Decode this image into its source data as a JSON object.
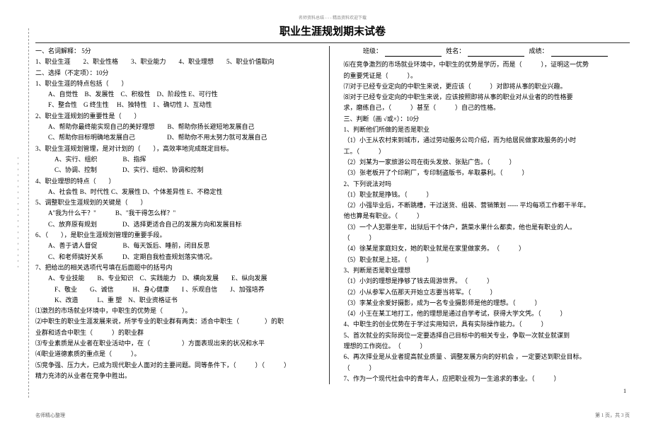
{
  "header_small": "名师资料总结 - - - 精品资料欢迎下载",
  "title": "职业生涯规划期末试卷",
  "info": {
    "class": "班级：",
    "name": "姓名：",
    "score": "成绩："
  },
  "left": [
    "一、名词解释：  5分",
    "1、职业生涯　　2、职业性格　　3、职业能力　　4、职业理想　　5、职业价值取向",
    "二、选择（不定项）：10分",
    "1、职业生涯的特点包括（　　）",
    "　　A、自觉性　B、发展性　C、积极性　D、阶段性  E、可行性",
    "　　F、整合性　G 终生性　  H、独特性　I 、确切性  J、互动性",
    "2、职业生涯规划的重要性是（　　）",
    "　　A、帮助你最终能实现自己的美好理想　　B、帮助你扬长避短地发展自己",
    "　　C、帮助你目标明确地发展自己　　　　　D、帮助你不用太努力就可发展自己",
    "3、职业生涯规划管理，是对计划的（　　），高效率地完成既定目标。",
    "　　　A、实行、组织　　　　B、指挥",
    "　　　C、协调、控制　　　　D、实行、组织、协调和控制",
    "4、职业理想的特点（　　）",
    "　　A、社会性  B、时代性  C、发展性  D、个体差异性  E、不稳定性",
    "5、调整职业生涯规划的关键是（　　）",
    "　　A\"我为什么干？\"　　　B、\"我干得怎么样？\"",
    "　　C、放弃原有规划　　　　D、选择更适合自己的发展方向和发展目标",
    "6、（　　），是职业生涯规划管理的重要手段。",
    "　　A、善于请人督促　　　　B、每天饭后、睡前，闭目反思",
    "　　C、和老师搞好关系　　　D、定期自我检查规划落实情况。",
    "7、把给出的相关选项代号填在后面题中的括号内",
    "　　A、专业技能　　B、专业知识　C、实践能力　D、横向发展　　E、纵向发展",
    "　　　F、敬业　　G、诚信　　　H、身心健康　　I 、乐观自信　　J、加强培养",
    "　　　K、改造　　　L、重 塑　N、职业资格证书",
    "⑴激烈的市场就业环境中，中职生的优势是（　　　）。",
    "⑵中职生的职业生涯发展来说，所学专业的职业群有两类：适合中职生（　　　　）的职",
    "业群和适合中职生（　　　）的职业群",
    "⑶专业素质是从业者在职业活动中，在（　　　　　）方面表现出来的状况和水平",
    "⑷职业道德素质的重点是（　　　）。",
    "⑸竞争强、压力大，已成为现代职业人面对的主要问题。同等条件下，（　　　）（　　　）",
    "精力充沛的从业者在竞争中胜出。"
  ],
  "right": [
    "⑹在竞争激烈的市场就业环境中，中职生的优势是学历，而是（　　　），证明这一优势",
    "的重要凭证是（　　　）。",
    "⑺对于已经专业定向的中职生来说，更应该（　　　）对即将从事的职业兴趣。",
    "⑻对于已经专业定向的中职生来说，应该按照即将从事的职业对从业者的的性格要",
    "求，磨练自己，（　　　）甚至（　　　）自己的性格。",
    "三、判断（画 √或×）：10分",
    "1、判断他们所做的是否是职业",
    "（1）小王从农村来到城市，通过劳动服务公司介绍，而为给居民做家政服务的小时",
    "工。（　　　）",
    "（2）刘某为一家旅游公司在街头发放、张贴广告。（　　　）",
    "（3）张老板开了个印刷厂，专印制盗版书，牟取暴利。（　　　）",
    "2、下列说法对吗",
    "（1）职业就是挣钱。（　　　）",
    "（2）小强毕业后，不断跳槽，干过送货、组装、营销策划 ----- 平均每项工作都干半年。",
    "他也算是有职业。（　　　）",
    "（3）一个人犯罪坐牢，出狱后干个体户，蔬菜水果什么都卖，他也是有职业的人。",
    "（　　　）",
    "（4）徐某是家庭妇女，她的职业就是在家里做家务。　（　　　）",
    "（5）职业就是上班。（　　　）",
    "3、判断是否是职业理想",
    "（1）小刘的理想是挣够了钱去周游世界。　（　　　）",
    "（2）小从参军入伍那天开始立志要当将军。（　　　）",
    "（3）李某业余爱好摄影，成为一名专业摄影师是他的理想。（　　　）",
    "（4）小王在某工地打工，他的理想是通过自学考试，获得大学文凭。（　　　）",
    "4、中职生的创业优势在于学过实用知识，具有实际操作能力。（　　　）",
    "5、首次就业的实际岗位一定要选择自己目标中的相关专业，争取一次就业就谋到",
    "理想的工作岗位。　（　　　）",
    "6、再次择业是从业者提高就业质量  、调整发展方向的好机会  ，一定要达到职业目标。",
    "（　　　）",
    "7、作为一个现代社会中的青年人，应把职业视为一生追求的事业。（　　　）"
  ],
  "small_num": "1",
  "footer_left": "名师精心整理",
  "page_num": "第 1 页，共 3 页"
}
